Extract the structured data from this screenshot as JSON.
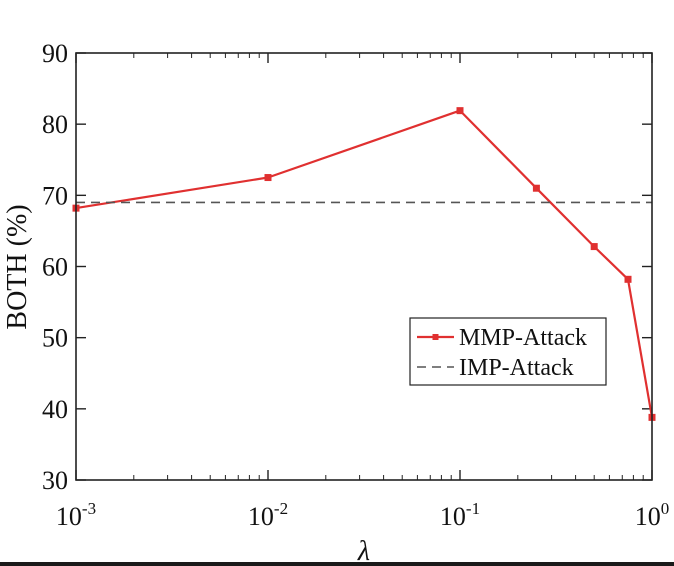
{
  "chart_data": {
    "type": "line",
    "title": "",
    "xlabel": "λ",
    "ylabel": "BOTH (%)",
    "xscale": "log",
    "xlim": [
      0.001,
      1
    ],
    "ylim": [
      30,
      90
    ],
    "grid": false,
    "x_ticks": [
      {
        "value": 0.001,
        "base": "10",
        "exp": "-3"
      },
      {
        "value": 0.01,
        "base": "10",
        "exp": "-2"
      },
      {
        "value": 0.1,
        "base": "10",
        "exp": "-1"
      },
      {
        "value": 1,
        "base": "10",
        "exp": "0"
      }
    ],
    "y_ticks": [
      30,
      40,
      50,
      60,
      70,
      80,
      90
    ],
    "legend_position": "lower-right",
    "series": [
      {
        "name": "MMP-Attack",
        "color": "#e03030",
        "style": "solid",
        "marker": "square",
        "x": [
          0.001,
          0.01,
          0.1,
          0.25,
          0.5,
          0.75,
          1
        ],
        "y": [
          68.2,
          72.5,
          81.9,
          71.0,
          62.8,
          58.2,
          38.8
        ]
      },
      {
        "name": "IMP-Attack",
        "color": "#555555",
        "style": "dashed",
        "marker": "none",
        "x": [
          0.001,
          1
        ],
        "y": [
          69.0,
          69.0
        ]
      }
    ]
  }
}
